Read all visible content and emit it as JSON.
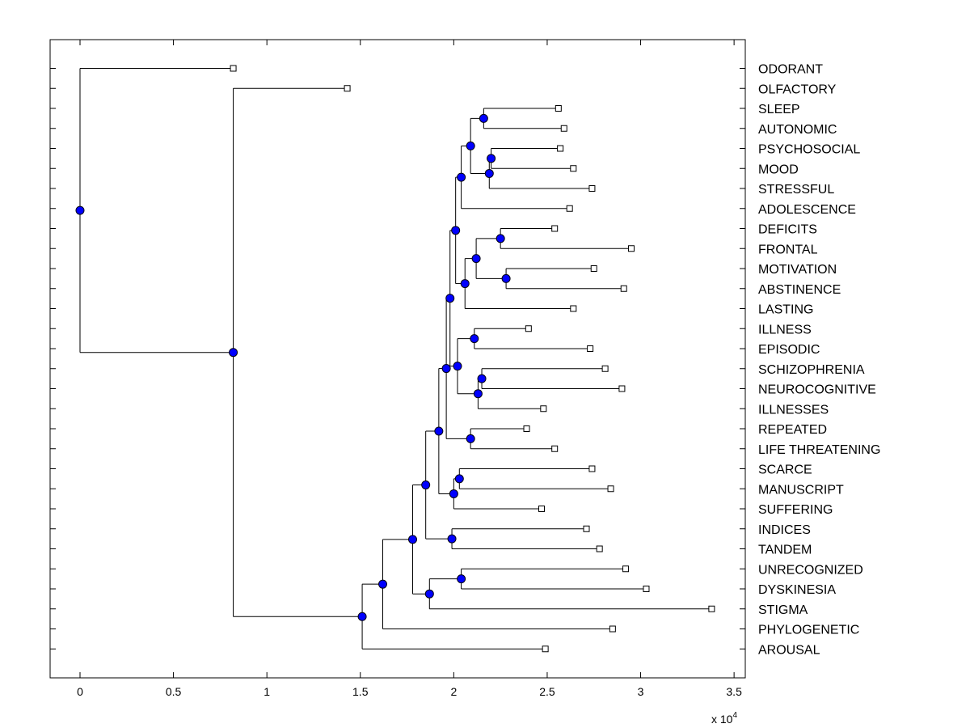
{
  "chart_data": {
    "type": "dendrogram",
    "x_multiplier_base": "x 10",
    "x_multiplier_exp": "4",
    "xlim": [
      -0.16,
      3.56
    ],
    "xticks": [
      0,
      0.5,
      1,
      1.5,
      2,
      2.5,
      3,
      3.5
    ],
    "xtick_labels": [
      "0",
      "0.5",
      "1",
      "1.5",
      "2",
      "2.5",
      "3",
      "3.5"
    ],
    "grid": false,
    "leaves": [
      {
        "label": "ODORANT",
        "x": 0.82
      },
      {
        "label": "OLFACTORY",
        "x": 1.43
      },
      {
        "label": "SLEEP",
        "x": 2.56
      },
      {
        "label": "AUTONOMIC",
        "x": 2.59
      },
      {
        "label": "PSYCHOSOCIAL",
        "x": 2.57
      },
      {
        "label": "MOOD",
        "x": 2.64
      },
      {
        "label": "STRESSFUL",
        "x": 2.74
      },
      {
        "label": "ADOLESCENCE",
        "x": 2.62
      },
      {
        "label": "DEFICITS",
        "x": 2.54
      },
      {
        "label": "FRONTAL",
        "x": 2.95
      },
      {
        "label": "MOTIVATION",
        "x": 2.75
      },
      {
        "label": "ABSTINENCE",
        "x": 2.91
      },
      {
        "label": "LASTING",
        "x": 2.64
      },
      {
        "label": "ILLNESS",
        "x": 2.4
      },
      {
        "label": "EPISODIC",
        "x": 2.73
      },
      {
        "label": "SCHIZOPHRENIA",
        "x": 2.81
      },
      {
        "label": "NEUROCOGNITIVE",
        "x": 2.9
      },
      {
        "label": "ILLNESSES",
        "x": 2.48
      },
      {
        "label": "REPEATED",
        "x": 2.39
      },
      {
        "label": "LIFE THREATENING",
        "x": 2.54
      },
      {
        "label": "SCARCE",
        "x": 2.74
      },
      {
        "label": "MANUSCRIPT",
        "x": 2.84
      },
      {
        "label": "SUFFERING",
        "x": 2.47
      },
      {
        "label": "INDICES",
        "x": 2.71
      },
      {
        "label": "TANDEM",
        "x": 2.78
      },
      {
        "label": "UNRECOGNIZED",
        "x": 2.92
      },
      {
        "label": "DYSKINESIA",
        "x": 3.03
      },
      {
        "label": "STIGMA",
        "x": 3.38
      },
      {
        "label": "PHYLOGENETIC",
        "x": 2.85
      },
      {
        "label": "AROUSAL",
        "x": 2.49
      }
    ],
    "nodes": [
      {
        "id": "n_root",
        "x": 0.0,
        "children": [
          "L0",
          "n_olf"
        ]
      },
      {
        "id": "n_olf",
        "x": 0.82,
        "children": [
          "L1",
          "n_big"
        ]
      },
      {
        "id": "n_big",
        "x": 1.51,
        "children": [
          "n_b1",
          "L29"
        ]
      },
      {
        "id": "n_b1",
        "x": 1.62,
        "children": [
          "n_b2",
          "L28"
        ]
      },
      {
        "id": "n_b2",
        "x": 1.78,
        "children": [
          "n_b3",
          "n_st"
        ]
      },
      {
        "id": "n_st",
        "x": 1.87,
        "children": [
          "n_ud",
          "L27"
        ]
      },
      {
        "id": "n_ud",
        "x": 2.04,
        "children": [
          "L25",
          "L26"
        ]
      },
      {
        "id": "n_b3",
        "x": 1.85,
        "children": [
          "n_b4",
          "n_it"
        ]
      },
      {
        "id": "n_it",
        "x": 1.99,
        "children": [
          "L23",
          "L24"
        ]
      },
      {
        "id": "n_b4",
        "x": 1.92,
        "children": [
          "n_b5",
          "n_sms"
        ]
      },
      {
        "id": "n_sms",
        "x": 2.0,
        "children": [
          "n_sm",
          "L22"
        ]
      },
      {
        "id": "n_sm",
        "x": 2.03,
        "children": [
          "L20",
          "L21"
        ]
      },
      {
        "id": "n_b5",
        "x": 1.96,
        "children": [
          "n_b6",
          "n_rl"
        ]
      },
      {
        "id": "n_rl",
        "x": 2.09,
        "children": [
          "L18",
          "L19"
        ]
      },
      {
        "id": "n_b6",
        "x": 1.98,
        "children": [
          "n_b7",
          "n_iesni"
        ]
      },
      {
        "id": "n_iesni",
        "x": 2.02,
        "children": [
          "n_ie",
          "n_sni"
        ]
      },
      {
        "id": "n_ie",
        "x": 2.11,
        "children": [
          "L13",
          "L14"
        ]
      },
      {
        "id": "n_sni",
        "x": 2.13,
        "children": [
          "n_sn",
          "L17"
        ]
      },
      {
        "id": "n_sn",
        "x": 2.15,
        "children": [
          "L15",
          "L16"
        ]
      },
      {
        "id": "n_b7",
        "x": 2.01,
        "children": [
          "n_top",
          "n_dfmal"
        ]
      },
      {
        "id": "n_dfmal",
        "x": 2.06,
        "children": [
          "n_dfma",
          "L12"
        ]
      },
      {
        "id": "n_dfma",
        "x": 2.12,
        "children": [
          "n_df",
          "n_ma"
        ]
      },
      {
        "id": "n_df",
        "x": 2.25,
        "children": [
          "L8",
          "L9"
        ]
      },
      {
        "id": "n_ma",
        "x": 2.28,
        "children": [
          "L10",
          "L11"
        ]
      },
      {
        "id": "n_top",
        "x": 2.04,
        "children": [
          "n_tops",
          "L7"
        ]
      },
      {
        "id": "n_tops",
        "x": 2.09,
        "children": [
          "n_sa",
          "n_pms"
        ]
      },
      {
        "id": "n_sa",
        "x": 2.16,
        "children": [
          "L2",
          "L3"
        ]
      },
      {
        "id": "n_pms",
        "x": 2.19,
        "children": [
          "n_pm",
          "L6"
        ]
      },
      {
        "id": "n_pm",
        "x": 2.2,
        "children": [
          "L4",
          "L5"
        ]
      }
    ]
  }
}
